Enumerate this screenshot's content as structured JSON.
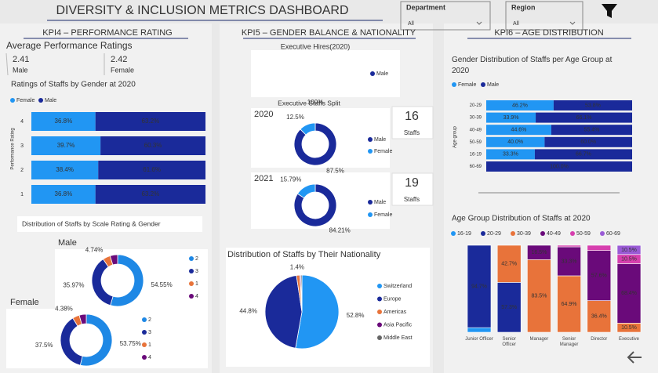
{
  "header": {
    "title": "DIVERSITY & INCLUSION METRICS DASHBOARD",
    "filters": [
      {
        "label": "Department",
        "value": "All"
      },
      {
        "label": "Region",
        "value": "All"
      }
    ]
  },
  "kpi4": {
    "title": "KPI4 – PERFORMANCE RATING",
    "avg_title": "Average Performance Ratings",
    "avg": [
      {
        "value": 2.41,
        "label": "Male"
      },
      {
        "value": 2.42,
        "label": "Female"
      }
    ],
    "dist_title": "Distribution of Staffs by Scale Rating & Gender"
  },
  "kpi5": {
    "title": "KPI5 – GENDER BALANCE & NATIONALITY",
    "split_title": "Executive Staffs  Split",
    "cards": [
      {
        "value": 16,
        "label": "Staffs"
      },
      {
        "value": 19,
        "label": "Staffs"
      }
    ]
  },
  "kpi6": {
    "title": "KPI6 – AGE DISTRIBUTION"
  },
  "chart_data": [
    {
      "type": "hbar",
      "title": "Ratings of Staffs by Gender at 2020",
      "y_label": "Performance Rating",
      "categories": [
        "4",
        "3",
        "2",
        "1"
      ],
      "xlim": [
        0,
        100
      ],
      "series": [
        {
          "name": "Female",
          "color": "#2196f3",
          "values": [
            36.8,
            39.7,
            38.4,
            36.8
          ],
          "value_labels": [
            "36.8%",
            "39.7%",
            "38.4%",
            "36.8%"
          ]
        },
        {
          "name": "Male",
          "color": "#1a2a9a",
          "values": [
            63.2,
            60.3,
            61.6,
            63.2
          ],
          "value_labels": [
            "63.2%",
            "60.3%",
            "61.6%",
            "63.2%"
          ]
        }
      ]
    },
    {
      "type": "donut",
      "title": "Male",
      "categories": [
        "2",
        "3",
        "1",
        "4"
      ],
      "colors": [
        "#1e88e5",
        "#1a2a9a",
        "#e8733a",
        "#6a0a7a"
      ],
      "values": [
        54.55,
        35.97,
        4.74,
        4.74
      ],
      "value_labels": [
        "54.55%",
        "35.97%",
        "4.74%",
        null
      ]
    },
    {
      "type": "donut",
      "title": "Female",
      "categories": [
        "2",
        "3",
        "1",
        "4"
      ],
      "colors": [
        "#1e88e5",
        "#1a2a9a",
        "#e8733a",
        "#6a0a7a"
      ],
      "values": [
        53.75,
        37.5,
        4.38,
        4.37
      ],
      "value_labels": [
        "53.75%",
        "37.5%",
        "4.38%",
        null
      ]
    },
    {
      "type": "donut",
      "title": "Executive Hires(2020)",
      "categories": [
        "Male"
      ],
      "colors": [
        "#1a2a9a"
      ],
      "values": [
        100
      ],
      "value_labels": [
        "100%"
      ]
    },
    {
      "type": "donut",
      "title": "2020",
      "categories": [
        "Male",
        "Female"
      ],
      "colors": [
        "#1a2a9a",
        "#2196f3"
      ],
      "values": [
        87.5,
        12.5
      ],
      "value_labels": [
        "87.5%",
        "12.5%"
      ]
    },
    {
      "type": "donut",
      "title": "2021",
      "categories": [
        "Male",
        "Female"
      ],
      "colors": [
        "#1a2a9a",
        "#2196f3"
      ],
      "values": [
        84.21,
        15.79
      ],
      "value_labels": [
        "84.21%",
        "15.79%"
      ]
    },
    {
      "type": "pie",
      "title": "Distribution of Staffs by Their Nationality",
      "categories": [
        "Switzerland",
        "Europe",
        "Americas",
        "Asia Pacific",
        "Middle East"
      ],
      "colors": [
        "#2196f3",
        "#1a2a9a",
        "#e8733a",
        "#6a0a7a",
        "#666666"
      ],
      "values": [
        52.8,
        44.8,
        1.4,
        0.5,
        0.5
      ],
      "value_labels": [
        "52.8%",
        "44.8%",
        "1.4%",
        null,
        null
      ]
    },
    {
      "type": "hbar",
      "title": "Gender Distribution of Staffs per Age Group at 2020",
      "y_label": "Age group",
      "categories": [
        "20-29",
        "30-39",
        "40-49",
        "50-59",
        "16-19",
        "60-69"
      ],
      "xlim": [
        0,
        100
      ],
      "series": [
        {
          "name": "Female",
          "color": "#2196f3",
          "values": [
            46.2,
            33.9,
            44.6,
            40.0,
            33.3,
            null
          ],
          "value_labels": [
            "46.2%",
            "33.9%",
            "44.6%",
            "40.0%",
            "33.3%",
            null
          ]
        },
        {
          "name": "Male",
          "color": "#1a2a9a",
          "values": [
            53.8,
            66.1,
            55.4,
            60.0,
            66.7,
            100
          ],
          "value_labels": [
            "53.8%",
            "66.1%",
            "55.4%",
            "60.0%",
            "66.7%",
            "100.0%"
          ]
        }
      ]
    },
    {
      "type": "column",
      "title": "Age Group Distribution of Staffs at 2020",
      "categories": [
        "Junior Officer",
        "Senior Officer",
        "Manager",
        "Senior Manager",
        "Director",
        "Executive"
      ],
      "ylim": [
        0,
        100
      ],
      "series": [
        {
          "name": "16-19",
          "color": "#2196f3",
          "values": [
            5.3,
            null,
            null,
            null,
            null,
            null
          ],
          "value_labels": [
            null,
            null,
            null,
            null,
            null,
            null
          ]
        },
        {
          "name": "20-29",
          "color": "#1a2a9a",
          "values": [
            94.7,
            57.3,
            null,
            null,
            null,
            null
          ],
          "value_labels": [
            "94.7%",
            "57.3%",
            null,
            null,
            null,
            null
          ]
        },
        {
          "name": "30-39",
          "color": "#e8733a",
          "values": [
            null,
            42.7,
            83.5,
            64.9,
            36.4,
            10.5
          ],
          "value_labels": [
            null,
            "42.7%",
            "83.5%",
            "64.9%",
            "36.4%",
            "10.5%"
          ]
        },
        {
          "name": "40-49",
          "color": "#6a0a7a",
          "values": [
            null,
            null,
            16.5,
            33.3,
            57.6,
            68.4
          ],
          "value_labels": [
            null,
            null,
            "16.5%",
            "33.3%",
            "57.6%",
            "68.4%"
          ]
        },
        {
          "name": "50-59",
          "color": "#d63fae",
          "values": [
            null,
            null,
            null,
            1.8,
            6.0,
            10.5
          ],
          "value_labels": [
            null,
            null,
            null,
            null,
            null,
            "10.5%"
          ]
        },
        {
          "name": "60-69",
          "color": "#9a5bd6",
          "values": [
            null,
            null,
            null,
            null,
            null,
            10.5
          ],
          "value_labels": [
            null,
            null,
            null,
            null,
            null,
            "10.5%"
          ]
        }
      ]
    }
  ]
}
